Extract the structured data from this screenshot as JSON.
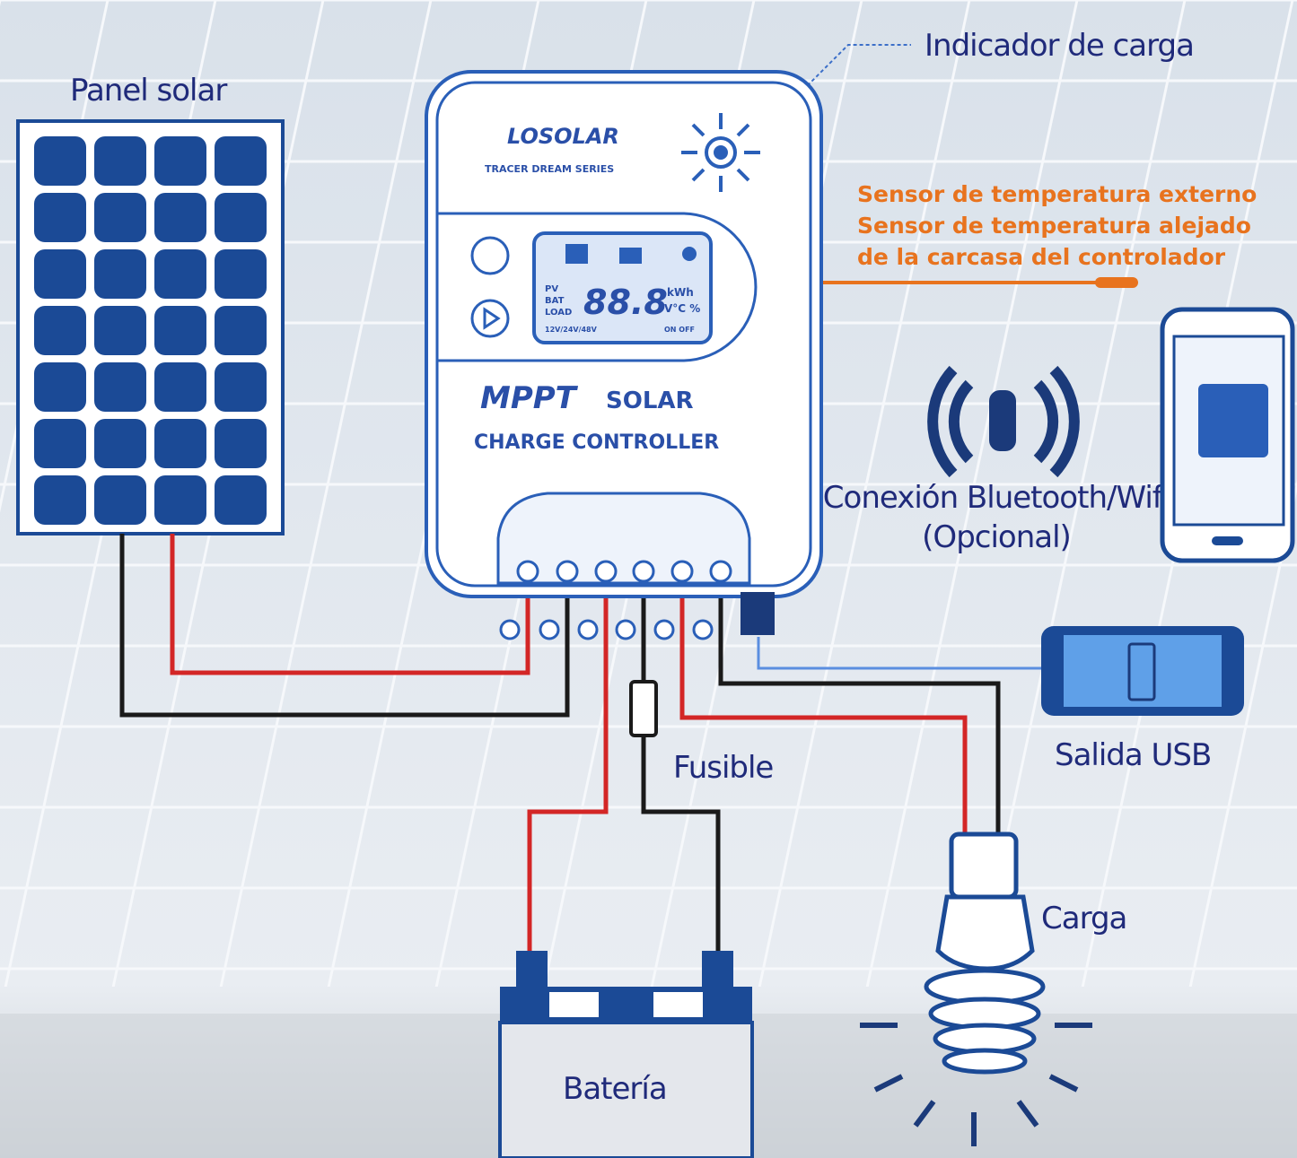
{
  "labels": {
    "panel_solar": "Panel solar",
    "indicador": "Indicador de carga",
    "sensor": [
      "Sensor de temperatura externo",
      "Sensor de temperatura alejado",
      "de la carcasa del controlador"
    ],
    "bluetooth": "Conexión Bluetooth/Wifi",
    "opcional": "(Opcional)",
    "usb": "Salida USB",
    "fusible": "Fusible",
    "carga": "Carga",
    "bateria": "Batería"
  },
  "device": {
    "brand": "LOSOLAR",
    "series": "TRACER DREAM SERIES",
    "mppt": "MPPT",
    "solar": "SOLAR",
    "controller": "CHARGE CONTROLLER",
    "lcd": "88.8",
    "pv": "PV",
    "bat": "BAT",
    "load": "LOAD",
    "units": "kWh",
    "units2": "V°C %",
    "volt": "12V/24V/48V",
    "onoff": "ON OFF"
  }
}
